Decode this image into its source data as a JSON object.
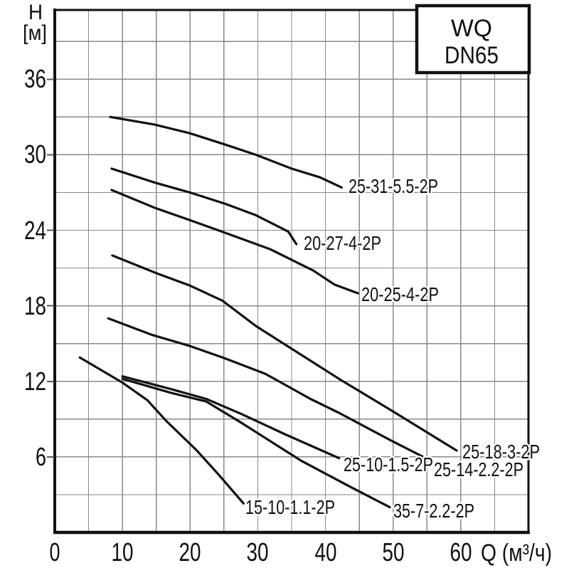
{
  "title_box": {
    "line1": "WQ",
    "line2": "DN65"
  },
  "y_axis": {
    "title_line1": "H",
    "title_line2": "[м]",
    "ticks": [
      36,
      30,
      24,
      18,
      12,
      6
    ],
    "minor_step": 3
  },
  "x_axis": {
    "title": "Q (м³/ч)",
    "ticks": [
      0,
      10,
      20,
      30,
      40,
      50,
      60
    ],
    "minor_step": 5
  },
  "colors": {
    "curve": "#111111",
    "grid": "#8a8a8a",
    "axis": "#111111",
    "tick": "#555555",
    "background": "#ffffff"
  },
  "chart_data": {
    "type": "line",
    "title": "WQ DN65 pump performance curves",
    "xlabel": "Q (м³/ч)",
    "ylabel": "H [м]",
    "xlim": [
      0,
      70
    ],
    "ylim": [
      0,
      41.5
    ],
    "grid": true,
    "series": [
      {
        "label": "25-31-5.5-2P",
        "points": [
          [
            8.2,
            33.0
          ],
          [
            14.7,
            32.4
          ],
          [
            20,
            31.7
          ],
          [
            25.2,
            30.8
          ],
          [
            29.7,
            30.0
          ],
          [
            35.0,
            28.9
          ],
          [
            39.2,
            28.2
          ],
          [
            42.4,
            27.4
          ]
        ],
        "label_anchor": [
          43.4,
          27.5
        ]
      },
      {
        "label": "20-27-4-2P",
        "points": [
          [
            8.4,
            28.9
          ],
          [
            14.7,
            27.8
          ],
          [
            20,
            27.0
          ],
          [
            25.2,
            26.1
          ],
          [
            29.7,
            25.2
          ],
          [
            34.5,
            23.9
          ],
          [
            35.7,
            22.9
          ]
        ],
        "label_anchor": [
          36.8,
          23.0
        ]
      },
      {
        "label": "20-25-4-2P",
        "points": [
          [
            8.4,
            27.2
          ],
          [
            14.7,
            25.8
          ],
          [
            20,
            24.8
          ],
          [
            25.2,
            23.8
          ],
          [
            31.8,
            22.5
          ],
          [
            38.2,
            20.8
          ],
          [
            41.3,
            19.7
          ],
          [
            44.8,
            19.0
          ]
        ],
        "label_anchor": [
          45.3,
          18.9
        ]
      },
      {
        "label": "25-18-3-2P",
        "points": [
          [
            8.5,
            22.0
          ],
          [
            15.0,
            20.6
          ],
          [
            20,
            19.6
          ],
          [
            24.8,
            18.4
          ],
          [
            29.7,
            16.4
          ],
          [
            42.0,
            12.2
          ],
          [
            49.7,
            9.7
          ],
          [
            59.4,
            6.5
          ]
        ],
        "label_anchor": [
          60.2,
          6.4
        ]
      },
      {
        "label": "25-14-2.2-2P",
        "points": [
          [
            7.9,
            17.0
          ],
          [
            14.3,
            15.7
          ],
          [
            20,
            14.8
          ],
          [
            24.8,
            13.9
          ],
          [
            31.1,
            12.6
          ],
          [
            37.8,
            10.6
          ],
          [
            42.0,
            9.5
          ],
          [
            49.7,
            7.3
          ],
          [
            54.8,
            5.9
          ]
        ],
        "label_anchor": [
          56.0,
          5.0
        ]
      },
      {
        "label": "25-10-1.5-2P",
        "points": [
          [
            10.0,
            12.4
          ],
          [
            17.1,
            11.4
          ],
          [
            22.4,
            10.6
          ],
          [
            27.6,
            9.4
          ],
          [
            34.0,
            7.8
          ],
          [
            42.0,
            5.9
          ]
        ],
        "label_anchor": [
          42.7,
          5.4
        ]
      },
      {
        "label": "15-10-1.1-2P",
        "points": [
          [
            3.7,
            13.9
          ],
          [
            10.0,
            11.9
          ],
          [
            13.7,
            10.5
          ],
          [
            16.4,
            8.9
          ],
          [
            21.0,
            6.5
          ],
          [
            24.2,
            4.6
          ],
          [
            27.9,
            2.3
          ]
        ],
        "label_anchor": [
          28.2,
          2.0
        ]
      },
      {
        "label": "35-7-2.2-2P",
        "points": [
          [
            10.0,
            12.2
          ],
          [
            17.1,
            11.1
          ],
          [
            22.4,
            10.4
          ],
          [
            27.6,
            8.7
          ],
          [
            36.4,
            5.7
          ],
          [
            43.4,
            3.7
          ],
          [
            49.5,
            2.0
          ]
        ],
        "label_anchor": [
          50.0,
          1.7
        ]
      }
    ]
  }
}
